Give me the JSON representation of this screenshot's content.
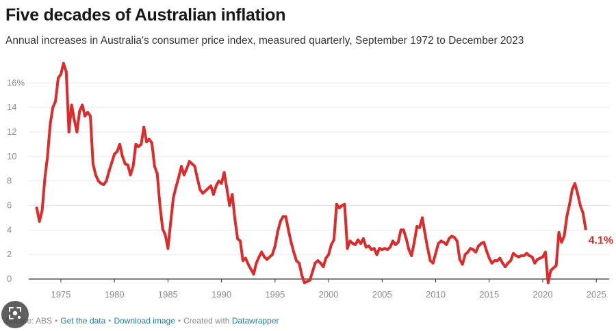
{
  "title": "Five decades of Australian inflation",
  "subtitle": "Annual increases in Australia's consumer price index, measured quarterly, September 1972 to December 2023",
  "footer": {
    "source": "Source: ABS",
    "get_data": "Get the data",
    "download": "Download image",
    "created_with": "Created with",
    "tool": "Datawrapper"
  },
  "colors": {
    "line": "#dd2b2b",
    "grid": "#e6e6e6",
    "axis": "#333333",
    "link": "#1d81a2"
  },
  "overlay_icon": "lens-search-icon",
  "chart_data": {
    "type": "line",
    "xlabel": "",
    "ylabel": "",
    "xlim": [
      1972,
      2026.2
    ],
    "ylim": [
      0,
      17.8
    ],
    "y_ticks": [
      0,
      2,
      4,
      6,
      8,
      10,
      12,
      14,
      16
    ],
    "y_tick_labels": [
      "0",
      "2",
      "4",
      "6",
      "8",
      "10",
      "12",
      "14",
      "16%"
    ],
    "x_ticks": [
      1975,
      1980,
      1985,
      1990,
      1995,
      2000,
      2005,
      2010,
      2015,
      2020,
      2025
    ],
    "x_tick_labels": [
      "1975",
      "1980",
      "1985",
      "1990",
      "1995",
      "2000",
      "2005",
      "2010",
      "2015",
      "2020",
      "2025"
    ],
    "end_label": "4.1%",
    "grid": true,
    "series": [
      {
        "values": [
          [
            1972.75,
            5.8
          ],
          [
            1973.0,
            4.7
          ],
          [
            1973.25,
            5.6
          ],
          [
            1973.5,
            8.2
          ],
          [
            1973.75,
            10.0
          ],
          [
            1974.0,
            12.6
          ],
          [
            1974.25,
            14.0
          ],
          [
            1974.5,
            14.5
          ],
          [
            1974.75,
            16.4
          ],
          [
            1975.0,
            16.7
          ],
          [
            1975.25,
            17.6
          ],
          [
            1975.5,
            16.9
          ],
          [
            1975.75,
            12.0
          ],
          [
            1976.0,
            14.2
          ],
          [
            1976.25,
            13.0
          ],
          [
            1976.5,
            12.0
          ],
          [
            1976.75,
            13.7
          ],
          [
            1977.0,
            14.2
          ],
          [
            1977.25,
            13.3
          ],
          [
            1977.5,
            13.6
          ],
          [
            1977.75,
            13.3
          ],
          [
            1978.0,
            9.4
          ],
          [
            1978.25,
            8.5
          ],
          [
            1978.5,
            8.0
          ],
          [
            1978.75,
            7.8
          ],
          [
            1979.0,
            7.7
          ],
          [
            1979.25,
            8.0
          ],
          [
            1979.5,
            8.8
          ],
          [
            1979.75,
            9.5
          ],
          [
            1980.0,
            10.2
          ],
          [
            1980.25,
            10.4
          ],
          [
            1980.5,
            11.0
          ],
          [
            1980.75,
            10.0
          ],
          [
            1981.0,
            9.4
          ],
          [
            1981.25,
            9.3
          ],
          [
            1981.5,
            8.5
          ],
          [
            1981.75,
            9.2
          ],
          [
            1982.0,
            11.0
          ],
          [
            1982.25,
            10.8
          ],
          [
            1982.5,
            11.0
          ],
          [
            1982.75,
            12.4
          ],
          [
            1983.0,
            11.2
          ],
          [
            1983.25,
            11.4
          ],
          [
            1983.5,
            11.1
          ],
          [
            1983.75,
            9.2
          ],
          [
            1984.0,
            8.6
          ],
          [
            1984.25,
            6.0
          ],
          [
            1984.5,
            4.1
          ],
          [
            1984.75,
            3.6
          ],
          [
            1985.0,
            2.5
          ],
          [
            1985.25,
            4.6
          ],
          [
            1985.5,
            6.6
          ],
          [
            1985.75,
            7.5
          ],
          [
            1986.0,
            8.3
          ],
          [
            1986.25,
            9.2
          ],
          [
            1986.5,
            8.5
          ],
          [
            1986.75,
            9.0
          ],
          [
            1987.0,
            9.6
          ],
          [
            1987.25,
            9.4
          ],
          [
            1987.5,
            9.2
          ],
          [
            1987.75,
            8.2
          ],
          [
            1988.0,
            7.3
          ],
          [
            1988.25,
            7.0
          ],
          [
            1988.5,
            7.2
          ],
          [
            1988.75,
            7.4
          ],
          [
            1989.0,
            7.6
          ],
          [
            1989.25,
            6.9
          ],
          [
            1989.5,
            7.6
          ],
          [
            1989.75,
            8.0
          ],
          [
            1990.0,
            7.8
          ],
          [
            1990.25,
            8.7
          ],
          [
            1990.5,
            7.4
          ],
          [
            1990.75,
            6.0
          ],
          [
            1991.0,
            6.9
          ],
          [
            1991.25,
            4.9
          ],
          [
            1991.5,
            3.3
          ],
          [
            1991.75,
            3.1
          ],
          [
            1992.0,
            1.5
          ],
          [
            1992.25,
            1.7
          ],
          [
            1992.5,
            1.2
          ],
          [
            1992.75,
            0.8
          ],
          [
            1993.0,
            0.4
          ],
          [
            1993.25,
            1.3
          ],
          [
            1993.5,
            1.8
          ],
          [
            1993.75,
            2.2
          ],
          [
            1994.0,
            1.8
          ],
          [
            1994.25,
            1.6
          ],
          [
            1994.5,
            1.8
          ],
          [
            1994.75,
            2.0
          ],
          [
            1995.0,
            2.7
          ],
          [
            1995.25,
            3.9
          ],
          [
            1995.5,
            4.7
          ],
          [
            1995.75,
            5.1
          ],
          [
            1996.0,
            5.1
          ],
          [
            1996.25,
            4.0
          ],
          [
            1996.5,
            3.0
          ],
          [
            1996.75,
            2.2
          ],
          [
            1997.0,
            1.5
          ],
          [
            1997.25,
            1.3
          ],
          [
            1997.5,
            0.3
          ],
          [
            1997.75,
            -0.3
          ],
          [
            1998.0,
            -0.2
          ],
          [
            1998.25,
            -0.1
          ],
          [
            1998.5,
            0.6
          ],
          [
            1998.75,
            1.3
          ],
          [
            1999.0,
            1.5
          ],
          [
            1999.25,
            1.3
          ],
          [
            1999.5,
            1.0
          ],
          [
            1999.75,
            1.7
          ],
          [
            2000.0,
            2.0
          ],
          [
            2000.25,
            2.8
          ],
          [
            2000.5,
            3.2
          ],
          [
            2000.75,
            6.1
          ],
          [
            2001.0,
            5.8
          ],
          [
            2001.25,
            6.0
          ],
          [
            2001.5,
            6.1
          ],
          [
            2001.75,
            2.5
          ],
          [
            2002.0,
            3.1
          ],
          [
            2002.25,
            2.9
          ],
          [
            2002.5,
            2.8
          ],
          [
            2002.75,
            3.2
          ],
          [
            2003.0,
            2.9
          ],
          [
            2003.25,
            3.3
          ],
          [
            2003.5,
            2.6
          ],
          [
            2003.75,
            2.7
          ],
          [
            2004.0,
            2.4
          ],
          [
            2004.25,
            2.5
          ],
          [
            2004.5,
            2.0
          ],
          [
            2004.75,
            2.5
          ],
          [
            2005.0,
            2.4
          ],
          [
            2005.25,
            2.5
          ],
          [
            2005.5,
            2.4
          ],
          [
            2005.75,
            2.6
          ],
          [
            2006.0,
            3.1
          ],
          [
            2006.25,
            2.8
          ],
          [
            2006.5,
            3.0
          ],
          [
            2006.75,
            4.0
          ],
          [
            2007.0,
            4.0
          ],
          [
            2007.25,
            3.3
          ],
          [
            2007.5,
            2.4
          ],
          [
            2007.75,
            1.9
          ],
          [
            2008.0,
            3.0
          ],
          [
            2008.25,
            4.3
          ],
          [
            2008.5,
            4.2
          ],
          [
            2008.75,
            5.0
          ],
          [
            2009.0,
            3.7
          ],
          [
            2009.25,
            2.5
          ],
          [
            2009.5,
            1.5
          ],
          [
            2009.75,
            1.3
          ],
          [
            2010.0,
            2.1
          ],
          [
            2010.25,
            2.9
          ],
          [
            2010.5,
            3.1
          ],
          [
            2010.75,
            3.0
          ],
          [
            2011.0,
            2.8
          ],
          [
            2011.25,
            3.3
          ],
          [
            2011.5,
            3.5
          ],
          [
            2011.75,
            3.4
          ],
          [
            2012.0,
            3.1
          ],
          [
            2012.25,
            1.6
          ],
          [
            2012.5,
            1.2
          ],
          [
            2012.75,
            2.0
          ],
          [
            2013.0,
            2.2
          ],
          [
            2013.25,
            2.5
          ],
          [
            2013.5,
            2.4
          ],
          [
            2013.75,
            2.2
          ],
          [
            2014.0,
            2.7
          ],
          [
            2014.25,
            2.9
          ],
          [
            2014.5,
            3.0
          ],
          [
            2014.75,
            2.3
          ],
          [
            2015.0,
            1.7
          ],
          [
            2015.25,
            1.3
          ],
          [
            2015.5,
            1.5
          ],
          [
            2015.75,
            1.5
          ],
          [
            2016.0,
            1.7
          ],
          [
            2016.25,
            1.3
          ],
          [
            2016.5,
            1.0
          ],
          [
            2016.75,
            1.3
          ],
          [
            2017.0,
            1.5
          ],
          [
            2017.25,
            2.1
          ],
          [
            2017.5,
            1.9
          ],
          [
            2017.75,
            1.8
          ],
          [
            2018.0,
            1.9
          ],
          [
            2018.25,
            1.9
          ],
          [
            2018.5,
            2.1
          ],
          [
            2018.75,
            1.9
          ],
          [
            2019.0,
            1.8
          ],
          [
            2019.25,
            1.3
          ],
          [
            2019.5,
            1.6
          ],
          [
            2019.75,
            1.7
          ],
          [
            2020.0,
            1.8
          ],
          [
            2020.25,
            2.2
          ],
          [
            2020.5,
            -0.3
          ],
          [
            2020.75,
            0.7
          ],
          [
            2021.0,
            0.9
          ],
          [
            2021.25,
            1.1
          ],
          [
            2021.5,
            3.8
          ],
          [
            2021.75,
            3.0
          ],
          [
            2022.0,
            3.5
          ],
          [
            2022.25,
            5.1
          ],
          [
            2022.5,
            6.1
          ],
          [
            2022.75,
            7.3
          ],
          [
            2023.0,
            7.8
          ],
          [
            2023.25,
            7.0
          ],
          [
            2023.5,
            6.0
          ],
          [
            2023.75,
            5.4
          ],
          [
            2024.0,
            4.1
          ]
        ]
      }
    ]
  }
}
